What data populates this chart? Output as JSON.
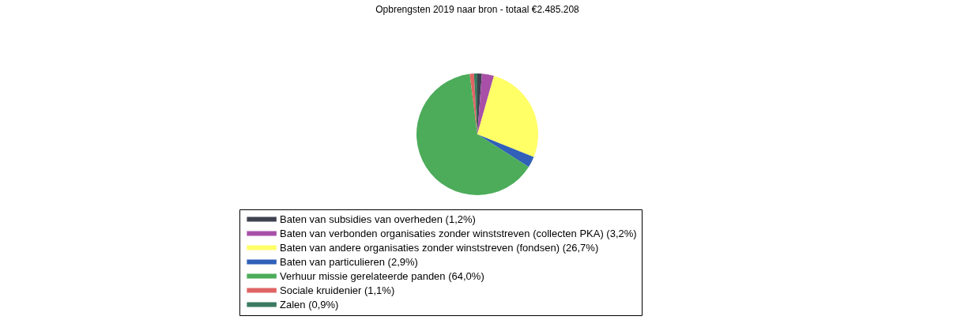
{
  "chart_data": {
    "type": "pie",
    "title": "Opbrengsten 2019 naar bron - totaal €2.485.208",
    "categories": [
      "Baten van subsidies van overheden (1,2%)",
      "Baten van verbonden organisaties zonder winststreven (collecten PKA) (3,2%)",
      "Baten van andere organisaties zonder winststreven (fondsen) (26,7%)",
      "Baten van particulieren (2,9%)",
      "Verhuur missie gerelateerde panden (64,0%)",
      "Sociale kruidenier (1,1%)",
      "Zalen (0,9%)"
    ],
    "values": [
      1.2,
      3.2,
      26.7,
      2.9,
      64.0,
      1.1,
      0.9
    ],
    "colors": [
      "#3f4150",
      "#a850a8",
      "#ffff66",
      "#3060b8",
      "#4cac5a",
      "#e06464",
      "#3a7a60"
    ],
    "legend": "bottom"
  }
}
